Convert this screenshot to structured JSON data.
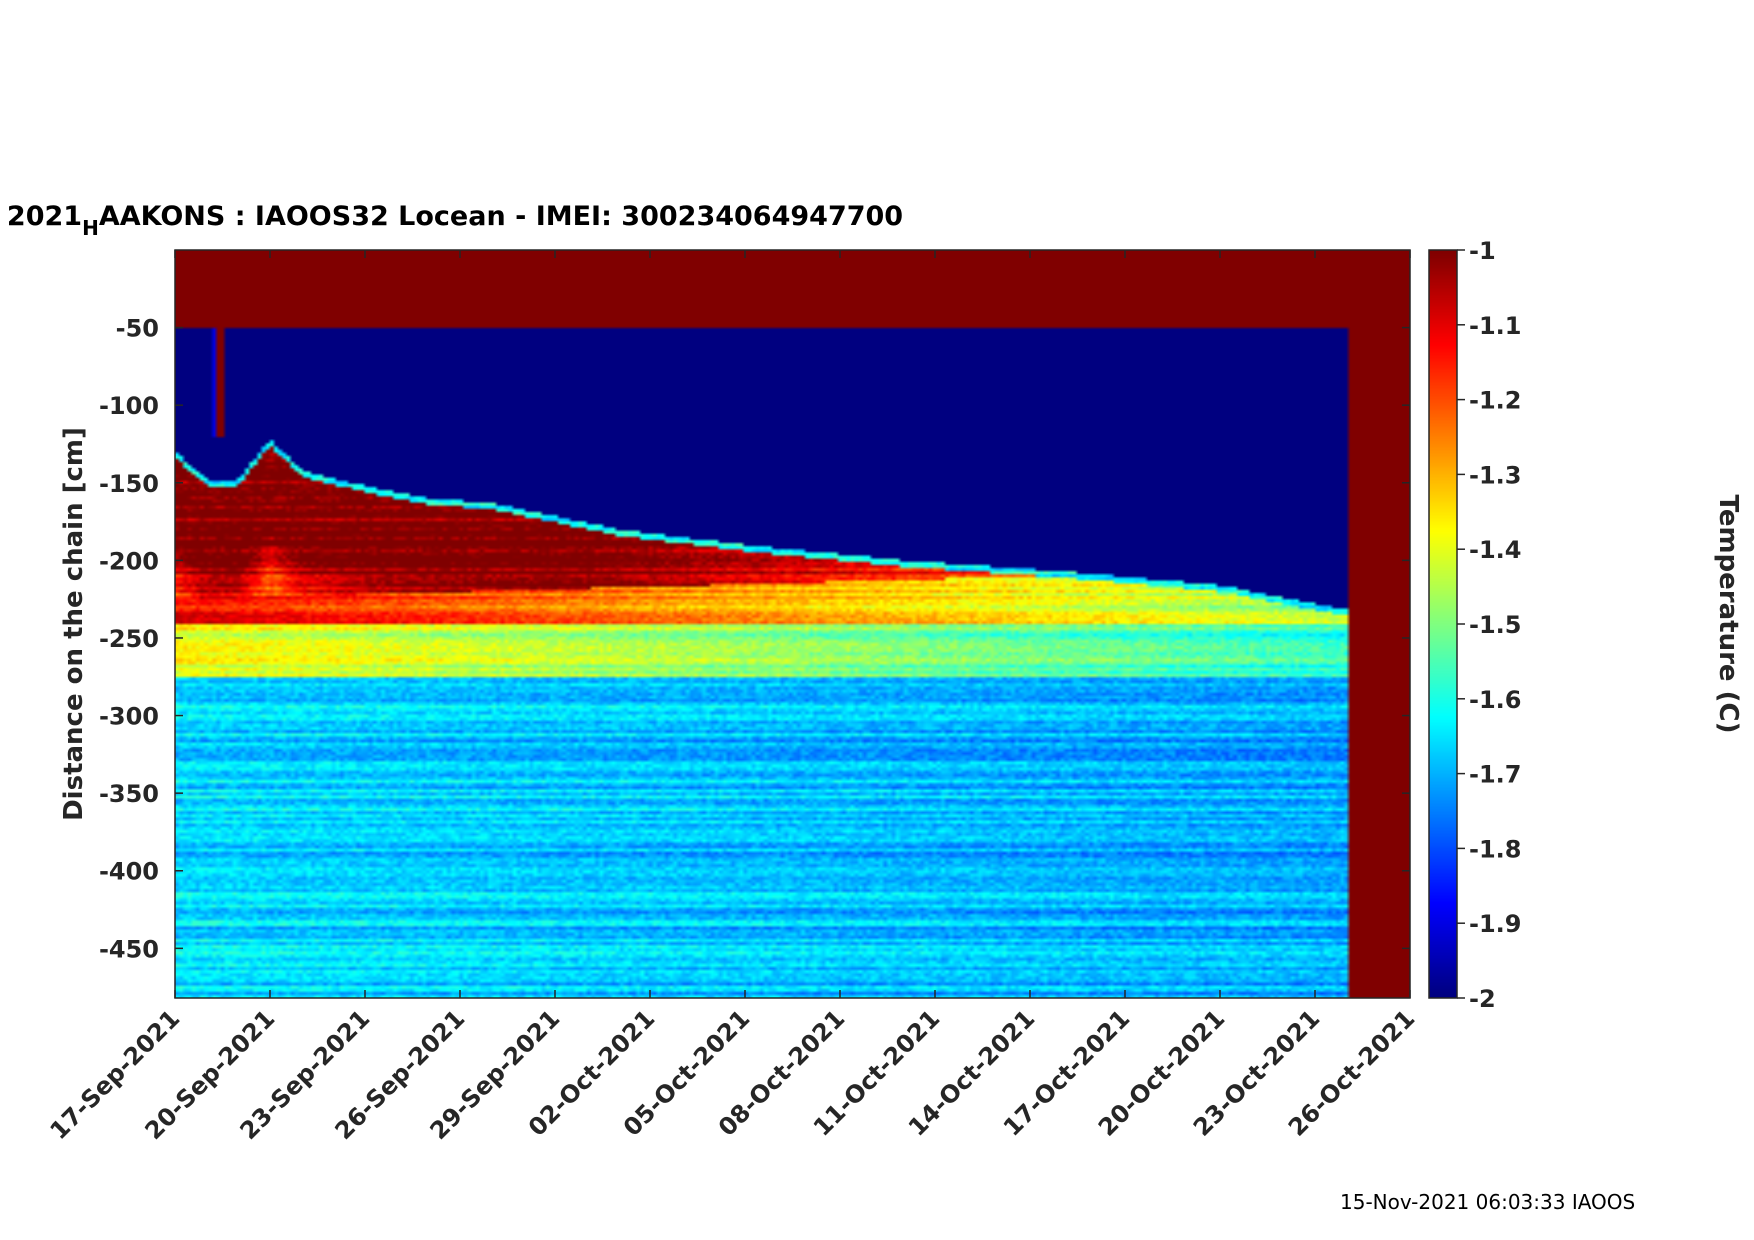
{
  "footer": "15-Nov-2021 06:03:33 IAOOS",
  "chart_data": {
    "type": "heatmap",
    "title_parts": [
      "2021",
      "H",
      "AAKONS : IAOOS32  Locean - IMEI: 300234064947700"
    ],
    "ylabel": "Distance on the chain [cm]",
    "colorbar_label": "Temperature (C)",
    "x_ticks": [
      "17-Sep-2021",
      "20-Sep-2021",
      "23-Sep-2021",
      "26-Sep-2021",
      "29-Sep-2021",
      "02-Oct-2021",
      "05-Oct-2021",
      "08-Oct-2021",
      "11-Oct-2021",
      "14-Oct-2021",
      "17-Oct-2021",
      "20-Oct-2021",
      "23-Oct-2021",
      "26-Oct-2021"
    ],
    "xlim": [
      "17-Sep-2021",
      "26-Oct-2021"
    ],
    "y_ticks": [
      "-50",
      "-100",
      "-150",
      "-200",
      "-250",
      "-300",
      "-350",
      "-400",
      "-450"
    ],
    "ylim": [
      -482,
      0
    ],
    "colorbar_ticks": [
      "-1",
      "-1.1",
      "-1.2",
      "-1.3",
      "-1.4",
      "-1.5",
      "-1.6",
      "-1.7",
      "-1.8",
      "-1.9",
      "-2"
    ],
    "clim": [
      -2,
      -1
    ],
    "colormap": "jet",
    "data_end": "24-Oct-2021",
    "ice_ocean_interface": {
      "x": [
        "17-Sep-2021",
        "18-Sep-2021",
        "19-Sep-2021",
        "20-Sep-2021",
        "21-Sep-2021",
        "23-Sep-2021",
        "25-Sep-2021",
        "27-Sep-2021",
        "01-Oct-2021",
        "05-Oct-2021",
        "10-Oct-2021",
        "15-Oct-2021",
        "20-Oct-2021",
        "24-Oct-2021"
      ],
      "y": [
        -130,
        -148,
        -148,
        -122,
        -142,
        -152,
        -160,
        -163,
        -180,
        -190,
        -200,
        -207,
        -216,
        -232
      ]
    }
  }
}
